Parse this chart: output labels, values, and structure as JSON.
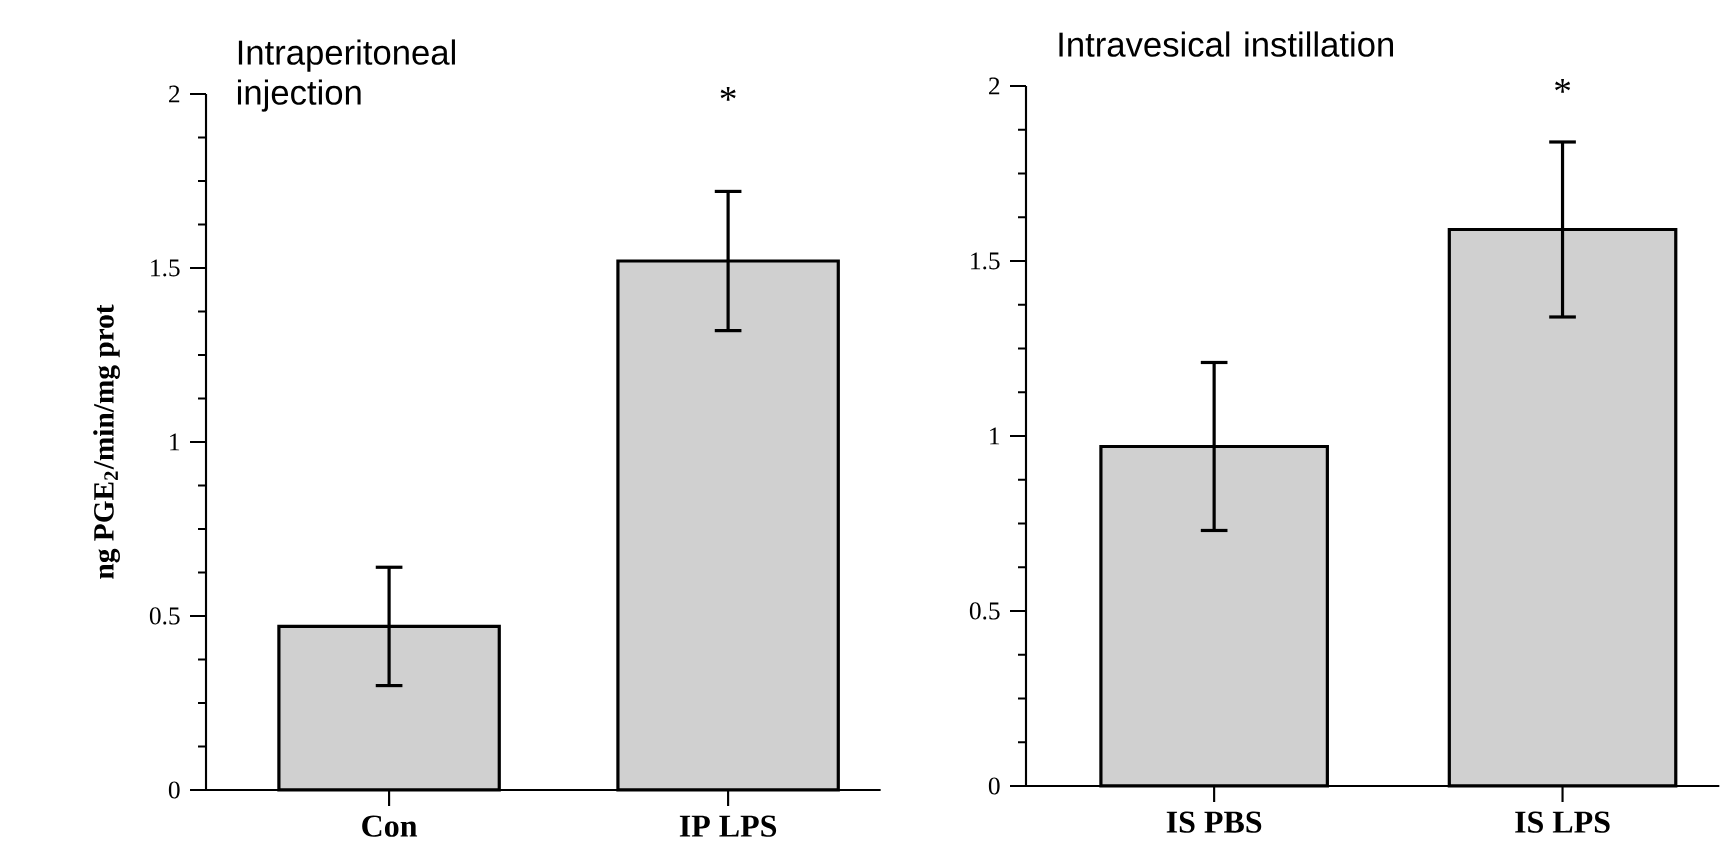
{
  "chart_data": [
    {
      "type": "bar",
      "title": "Intraperitoneal injection",
      "ylabel": "ng PGE$_{2}$/min/mg prot",
      "categories": [
        "Con",
        "IP LPS"
      ],
      "values": [
        0.47,
        1.52
      ],
      "errors": [
        0.17,
        0.2
      ],
      "color": "#d0d0d0",
      "ylim": [
        0,
        2
      ],
      "yticks": [
        0,
        0.5,
        1,
        1.5,
        2
      ],
      "grid": false,
      "annotations": [
        "*"
      ]
    },
    {
      "type": "bar",
      "title": "Intravesical instillation",
      "categories": [
        "IS PBS",
        "IS LPS"
      ],
      "values": [
        0.97,
        1.59
      ],
      "errors": [
        0.24,
        0.25
      ],
      "color": "#d0d0d0",
      "ylim": [
        0,
        2
      ],
      "yticks": [
        0,
        0.5,
        1,
        1.5,
        2
      ],
      "grid": false,
      "annotations": [
        "*"
      ]
    }
  ]
}
